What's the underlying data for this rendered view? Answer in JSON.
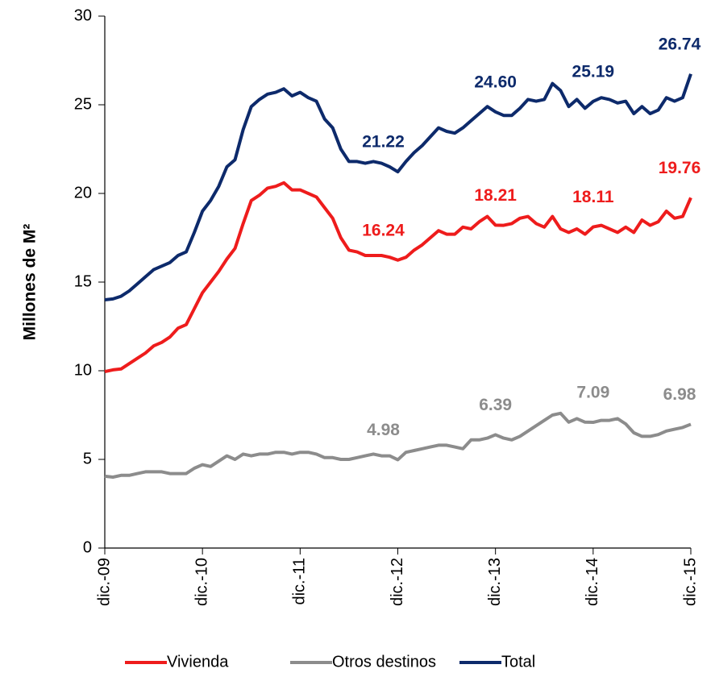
{
  "chart_data": {
    "type": "line",
    "y_label": "Millones de  M²",
    "categories": [
      "dic.-09",
      null,
      null,
      null,
      null,
      null,
      null,
      null,
      null,
      null,
      null,
      null,
      "dic.-10",
      null,
      null,
      null,
      null,
      null,
      null,
      null,
      null,
      null,
      null,
      null,
      "dic.-11",
      null,
      null,
      null,
      null,
      null,
      null,
      null,
      null,
      null,
      null,
      null,
      "dic.-12",
      null,
      null,
      null,
      null,
      null,
      null,
      null,
      null,
      null,
      null,
      null,
      "dic.-13",
      null,
      null,
      null,
      null,
      null,
      null,
      null,
      null,
      null,
      null,
      null,
      "dic.-14",
      null,
      null,
      null,
      null,
      null,
      null,
      null,
      null,
      null,
      null,
      null,
      "dic.-15"
    ],
    "ylim": [
      0,
      30
    ],
    "yticks": [
      0,
      5,
      10,
      15,
      20,
      25,
      30
    ],
    "legend": "bottom",
    "series": [
      {
        "name": "Vivienda",
        "color": "#ee1c1c",
        "values": [
          9.95,
          10.05,
          10.1,
          10.4,
          10.7,
          11.0,
          11.4,
          11.6,
          11.9,
          12.4,
          12.6,
          13.5,
          14.4,
          15.0,
          15.6,
          16.3,
          16.9,
          18.3,
          19.6,
          19.9,
          20.3,
          20.4,
          20.6,
          20.2,
          20.2,
          20.0,
          19.8,
          19.2,
          18.6,
          17.5,
          16.8,
          16.7,
          16.5,
          16.5,
          16.5,
          16.4,
          16.24,
          16.4,
          16.8,
          17.1,
          17.5,
          17.9,
          17.7,
          17.7,
          18.1,
          18.0,
          18.4,
          18.7,
          18.21,
          18.2,
          18.3,
          18.6,
          18.7,
          18.3,
          18.1,
          18.7,
          18.0,
          17.8,
          18.0,
          17.7,
          18.11,
          18.2,
          18.0,
          17.8,
          18.1,
          17.8,
          18.5,
          18.2,
          18.4,
          19.0,
          18.6,
          18.7,
          19.76
        ],
        "value_labels": [
          null,
          null,
          null,
          null,
          null,
          null,
          null,
          null,
          null,
          null,
          null,
          null,
          null,
          null,
          null,
          null,
          null,
          null,
          null,
          null,
          null,
          null,
          null,
          null,
          null,
          null,
          null,
          null,
          null,
          null,
          null,
          null,
          null,
          null,
          null,
          null,
          "16.24",
          null,
          null,
          null,
          null,
          null,
          null,
          null,
          null,
          null,
          null,
          null,
          "18.21",
          null,
          null,
          null,
          null,
          null,
          null,
          null,
          null,
          null,
          null,
          null,
          "18.11",
          null,
          null,
          null,
          null,
          null,
          null,
          null,
          null,
          null,
          null,
          null,
          "19.76"
        ]
      },
      {
        "name": "Otros destinos",
        "color": "#8c8c8c",
        "values": [
          4.05,
          4.0,
          4.1,
          4.1,
          4.2,
          4.3,
          4.3,
          4.3,
          4.2,
          4.2,
          4.2,
          4.5,
          4.7,
          4.6,
          4.9,
          5.2,
          5.0,
          5.3,
          5.2,
          5.3,
          5.3,
          5.4,
          5.4,
          5.3,
          5.4,
          5.4,
          5.3,
          5.1,
          5.1,
          5.0,
          5.0,
          5.1,
          5.2,
          5.3,
          5.2,
          5.2,
          4.98,
          5.4,
          5.5,
          5.6,
          5.7,
          5.8,
          5.8,
          5.7,
          5.6,
          6.1,
          6.1,
          6.2,
          6.39,
          6.2,
          6.1,
          6.3,
          6.6,
          6.9,
          7.2,
          7.5,
          7.6,
          7.1,
          7.3,
          7.1,
          7.09,
          7.2,
          7.2,
          7.3,
          7.0,
          6.5,
          6.3,
          6.3,
          6.4,
          6.6,
          6.7,
          6.8,
          6.98
        ],
        "value_labels": [
          null,
          null,
          null,
          null,
          null,
          null,
          null,
          null,
          null,
          null,
          null,
          null,
          null,
          null,
          null,
          null,
          null,
          null,
          null,
          null,
          null,
          null,
          null,
          null,
          null,
          null,
          null,
          null,
          null,
          null,
          null,
          null,
          null,
          null,
          null,
          null,
          "4.98",
          null,
          null,
          null,
          null,
          null,
          null,
          null,
          null,
          null,
          null,
          null,
          "6.39",
          null,
          null,
          null,
          null,
          null,
          null,
          null,
          null,
          null,
          null,
          null,
          "7.09",
          null,
          null,
          null,
          null,
          null,
          null,
          null,
          null,
          null,
          null,
          null,
          "6.98"
        ]
      },
      {
        "name": "Total",
        "color": "#0d2a6b",
        "values": [
          14.0,
          14.05,
          14.2,
          14.5,
          14.9,
          15.3,
          15.7,
          15.9,
          16.1,
          16.5,
          16.7,
          17.8,
          19.0,
          19.6,
          20.4,
          21.5,
          21.9,
          23.6,
          24.9,
          25.3,
          25.6,
          25.7,
          25.9,
          25.5,
          25.7,
          25.4,
          25.2,
          24.2,
          23.7,
          22.5,
          21.8,
          21.8,
          21.7,
          21.8,
          21.7,
          21.5,
          21.22,
          21.8,
          22.3,
          22.7,
          23.2,
          23.7,
          23.5,
          23.4,
          23.7,
          24.1,
          24.5,
          24.9,
          24.6,
          24.4,
          24.4,
          24.8,
          25.3,
          25.2,
          25.3,
          26.2,
          25.8,
          24.9,
          25.3,
          24.8,
          25.19,
          25.4,
          25.3,
          25.1,
          25.2,
          24.5,
          24.9,
          24.5,
          24.7,
          25.4,
          25.2,
          25.4,
          26.74
        ],
        "value_labels": [
          null,
          null,
          null,
          null,
          null,
          null,
          null,
          null,
          null,
          null,
          null,
          null,
          null,
          null,
          null,
          null,
          null,
          null,
          null,
          null,
          null,
          null,
          null,
          null,
          null,
          null,
          null,
          null,
          null,
          null,
          null,
          null,
          null,
          null,
          null,
          null,
          "21.22",
          null,
          null,
          null,
          null,
          null,
          null,
          null,
          null,
          null,
          null,
          null,
          "24.60",
          null,
          null,
          null,
          null,
          null,
          null,
          null,
          null,
          null,
          null,
          null,
          "25.19",
          null,
          null,
          null,
          null,
          null,
          null,
          null,
          null,
          null,
          null,
          null,
          "26.74"
        ]
      }
    ]
  }
}
